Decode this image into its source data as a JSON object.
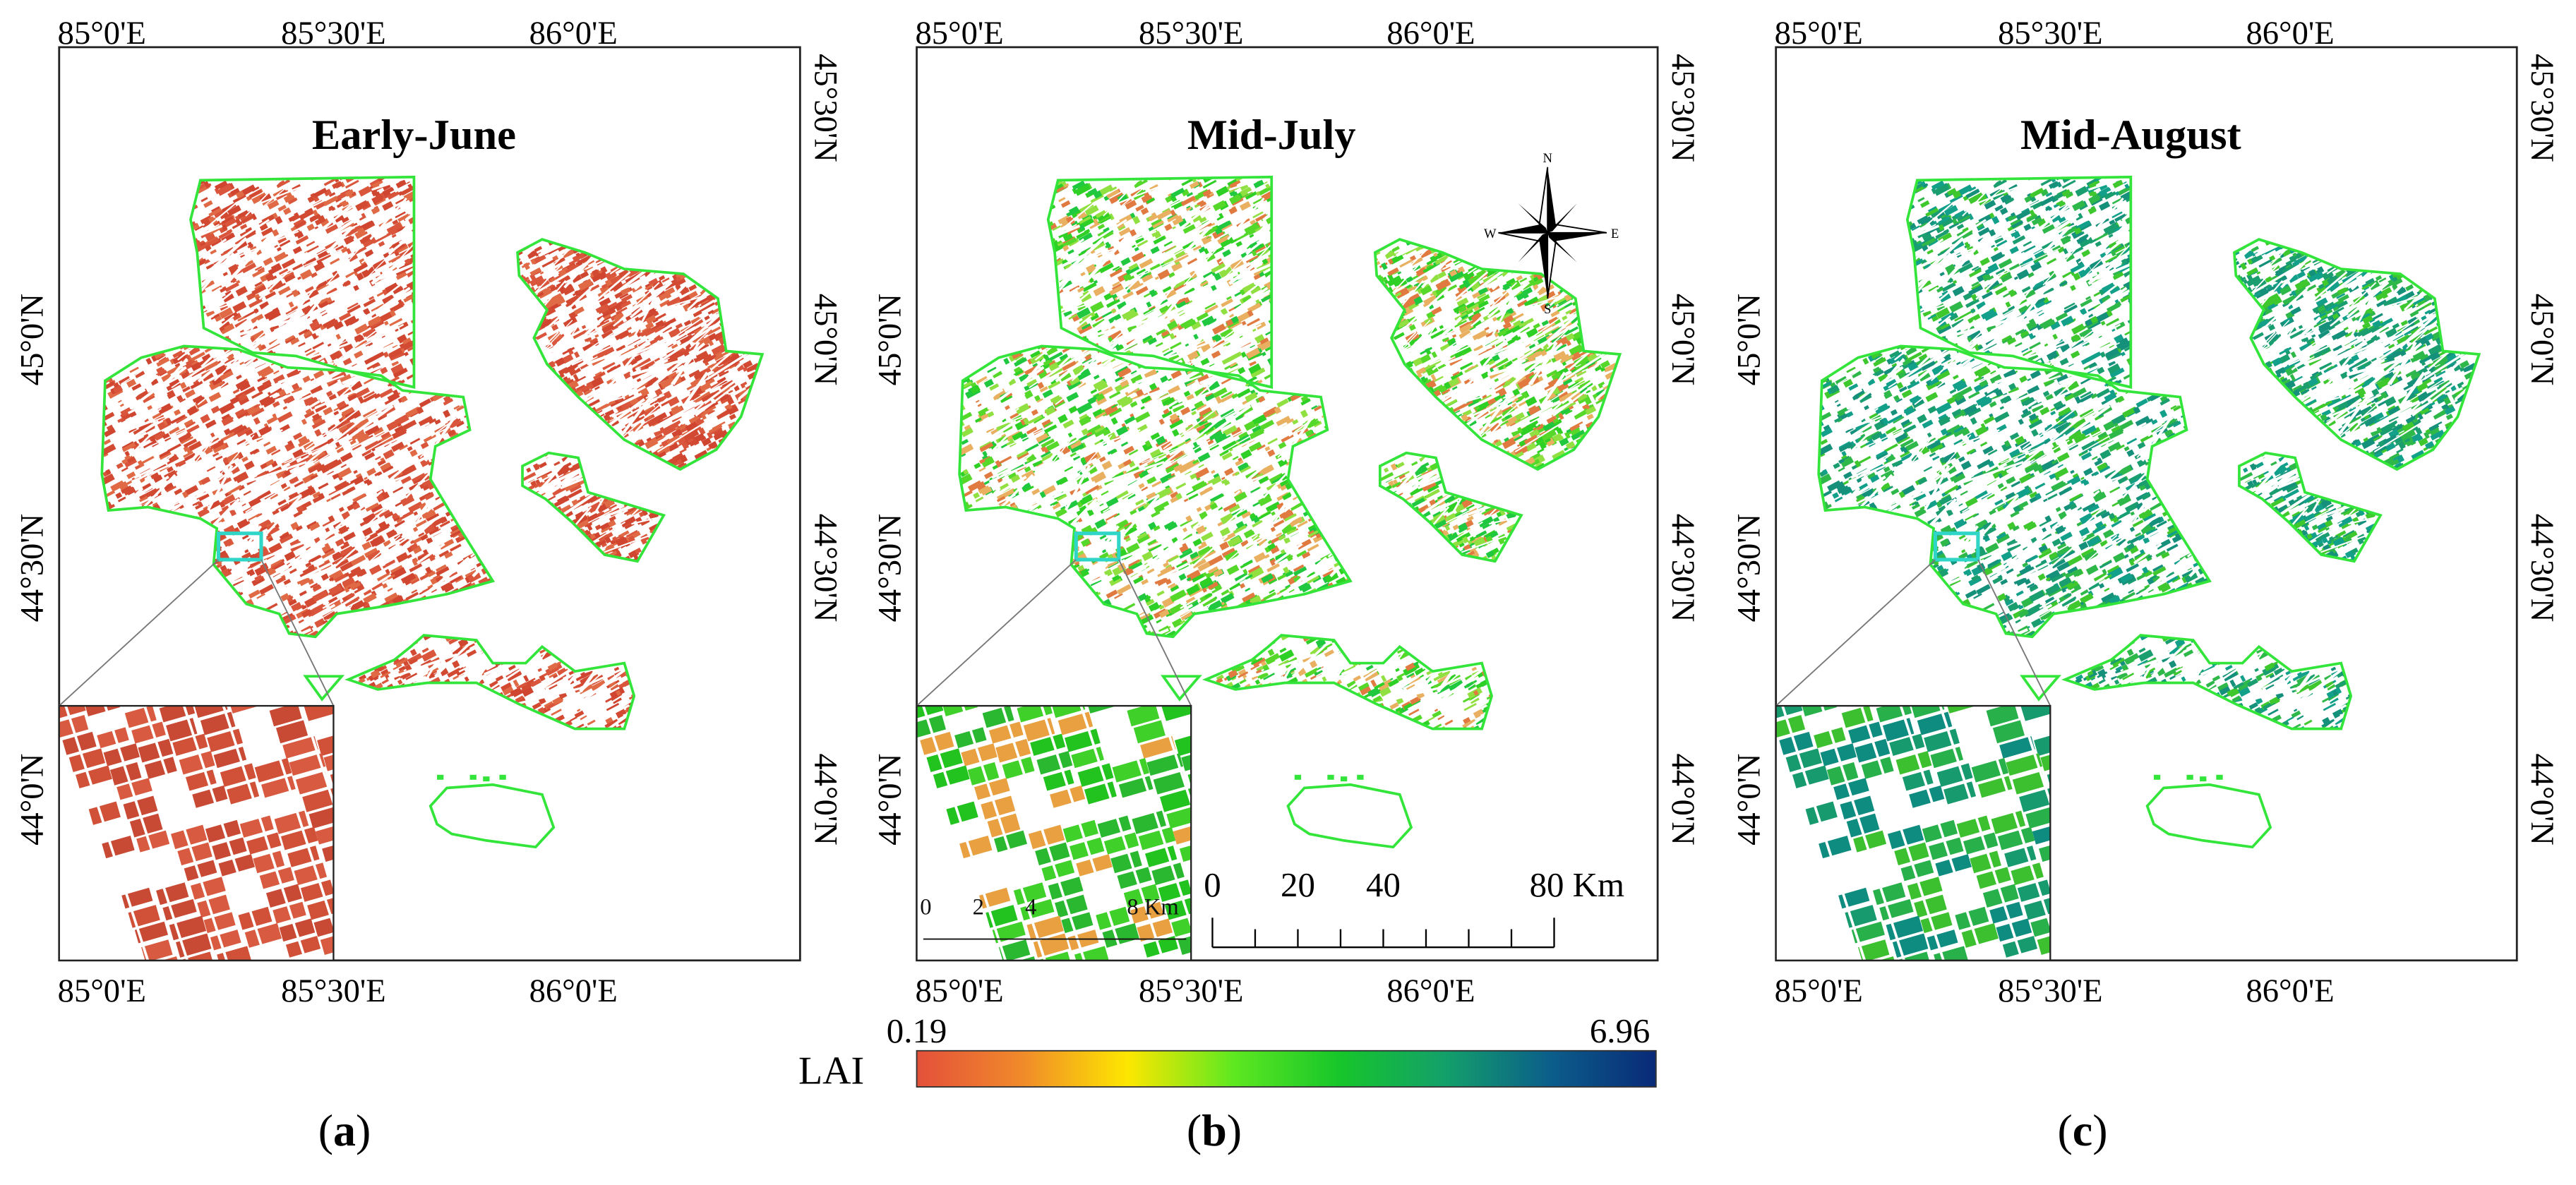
{
  "panels": [
    {
      "title": "Early-June",
      "label": "a",
      "palette": [
        "#d9553b",
        "#d34a33",
        "#e06a45",
        "#cf4530"
      ],
      "inset_palette": [
        "#d05038",
        "#c84a35",
        "#d85a40"
      ],
      "x_ticks": [
        "85°0'E",
        "85°30'E",
        "86°0'E"
      ],
      "y_ticks_left": [
        "45°0'N",
        "44°30'N",
        "44°0'N"
      ],
      "y_ticks_right": [
        "45°30'N",
        "45°0'N",
        "44°30'N",
        "44°0'N"
      ]
    },
    {
      "title": "Mid-July",
      "label": "b",
      "palette": [
        "#2fd025",
        "#55d82a",
        "#e8b060",
        "#e07a40",
        "#20c840",
        "#8fe040"
      ],
      "inset_palette": [
        "#22c31e",
        "#3fd02a",
        "#e8a040",
        "#2ab830"
      ],
      "x_ticks": [
        "85°0'E",
        "85°30'E",
        "86°0'E"
      ],
      "y_ticks_left": [
        "45°0'N",
        "44°30'N",
        "44°0'N"
      ],
      "y_ticks_right": [
        "45°30'N",
        "45°0'N",
        "44°30'N",
        "44°0'N"
      ]
    },
    {
      "title": "Mid-August",
      "label": "c",
      "palette": [
        "#1a9e70",
        "#2fb84a",
        "#15907a",
        "#3ec82e",
        "#12a08a"
      ],
      "inset_palette": [
        "#169a6e",
        "#28b04a",
        "#0f8c80",
        "#3cc030"
      ],
      "x_ticks": [
        "85°0'E",
        "85°30'E",
        "86°0'E"
      ],
      "y_ticks_left": [
        "45°0'N",
        "44°30'N",
        "44°0'N"
      ],
      "y_ticks_right": [
        "45°30'N",
        "45°0'N",
        "44°30'N",
        "44°0'N"
      ]
    }
  ],
  "boundary_color": "#33e53a",
  "highlight_color": "#2fd6c8",
  "colorbar": {
    "label": "LAI",
    "min_label": "0.19",
    "max_label": "6.96",
    "min": 0.19,
    "max": 6.96,
    "stops": [
      "#e4503a",
      "#f08a2a",
      "#fde700",
      "#5ee820",
      "#16c62a",
      "#13a06a",
      "#0b5e8a",
      "#0a2a78"
    ]
  },
  "compass": {
    "n": "N",
    "s": "S",
    "e": "E",
    "w": "W"
  },
  "scale_bar": {
    "labels": [
      "0",
      "20",
      "40",
      "80 Km"
    ]
  },
  "inset_scale": {
    "labels": [
      "0",
      "2",
      "4",
      "8 Km"
    ]
  }
}
